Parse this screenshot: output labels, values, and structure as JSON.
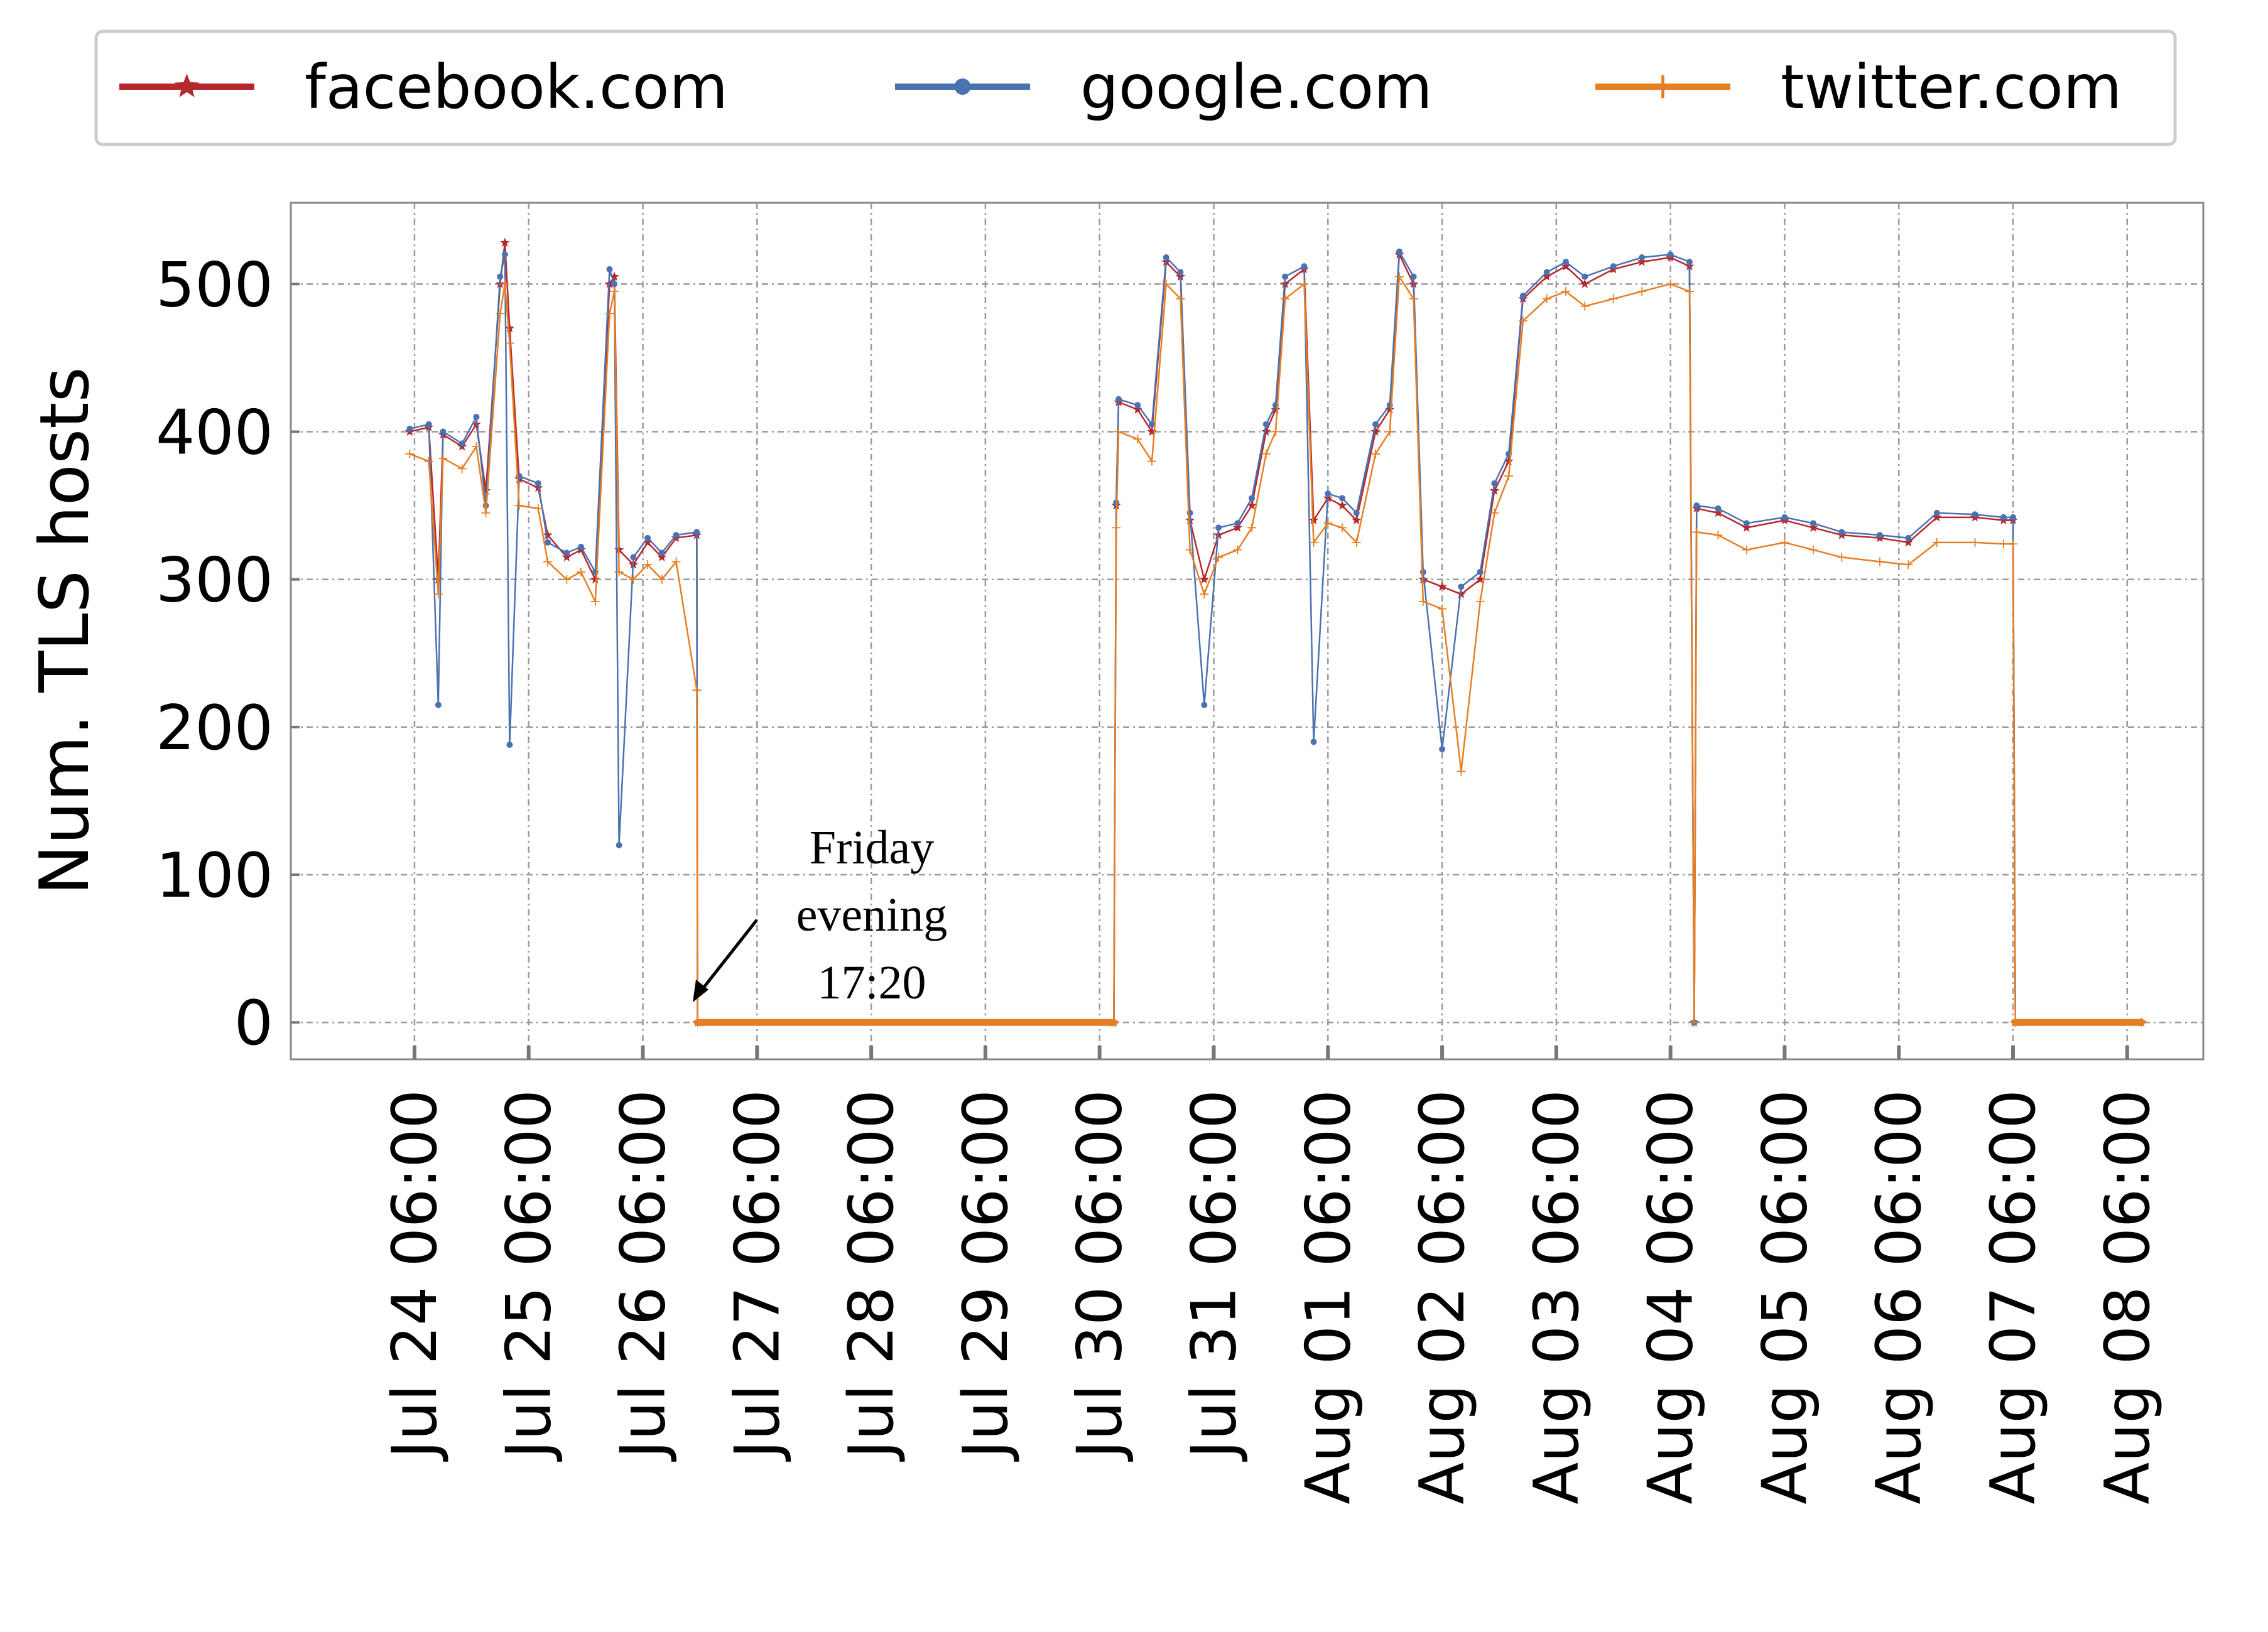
{
  "chart_data": {
    "type": "line",
    "title": "",
    "xlabel": "",
    "ylabel": "Num. TLS hosts",
    "xlim": [
      "2020-07-23T04:00",
      "2020-08-08T22:00"
    ],
    "ylim": [
      -25,
      555
    ],
    "yticks": [
      0,
      100,
      200,
      300,
      400,
      500
    ],
    "xtick_labels": [
      "Jul 24 06:00",
      "Jul 25 06:00",
      "Jul 26 06:00",
      "Jul 27 06:00",
      "Jul 28 06:00",
      "Jul 29 06:00",
      "Jul 30 06:00",
      "Jul 31 06:00",
      "Aug 01 06:00",
      "Aug 02 06:00",
      "Aug 03 06:00",
      "Aug 04 06:00",
      "Aug 05 06:00",
      "Aug 06 06:00",
      "Aug 07 06:00",
      "Aug 08 06:00"
    ],
    "grid": true,
    "legend_position": "top",
    "annotation": {
      "lines": [
        "Friday",
        "evening",
        "17:20"
      ],
      "x": "2020-07-26T17:20",
      "y": 0
    },
    "series": [
      {
        "name": "facebook.com",
        "color": "#b5282d",
        "marker": "star",
        "points": [
          [
            "2020-07-24T05:00",
            400
          ],
          [
            "2020-07-24T09:00",
            403
          ],
          [
            "2020-07-24T11:00",
            300
          ],
          [
            "2020-07-24T12:00",
            398
          ],
          [
            "2020-07-24T16:00",
            390
          ],
          [
            "2020-07-24T19:00",
            405
          ],
          [
            "2020-07-24T21:00",
            360
          ],
          [
            "2020-07-25T00:00",
            500
          ],
          [
            "2020-07-25T01:00",
            528
          ],
          [
            "2020-07-25T02:00",
            470
          ],
          [
            "2020-07-25T04:00",
            368
          ],
          [
            "2020-07-25T08:00",
            362
          ],
          [
            "2020-07-25T10:00",
            330
          ],
          [
            "2020-07-25T14:00",
            315
          ],
          [
            "2020-07-25T17:00",
            320
          ],
          [
            "2020-07-25T20:00",
            300
          ],
          [
            "2020-07-25T23:00",
            500
          ],
          [
            "2020-07-26T00:00",
            505
          ],
          [
            "2020-07-26T01:00",
            320
          ],
          [
            "2020-07-26T04:00",
            310
          ],
          [
            "2020-07-26T07:00",
            325
          ],
          [
            "2020-07-26T10:00",
            315
          ],
          [
            "2020-07-26T13:00",
            328
          ],
          [
            "2020-07-26T17:20",
            330
          ],
          [
            "2020-07-26T17:30",
            0
          ],
          [
            "2020-07-30T09:00",
            0
          ],
          [
            "2020-07-30T09:30",
            350
          ],
          [
            "2020-07-30T10:00",
            420
          ],
          [
            "2020-07-30T14:00",
            415
          ],
          [
            "2020-07-30T17:00",
            400
          ],
          [
            "2020-07-30T20:00",
            515
          ],
          [
            "2020-07-30T23:00",
            505
          ],
          [
            "2020-07-31T01:00",
            340
          ],
          [
            "2020-07-31T04:00",
            300
          ],
          [
            "2020-07-31T07:00",
            330
          ],
          [
            "2020-07-31T11:00",
            335
          ],
          [
            "2020-07-31T14:00",
            350
          ],
          [
            "2020-07-31T17:00",
            400
          ],
          [
            "2020-07-31T19:00",
            415
          ],
          [
            "2020-07-31T21:00",
            500
          ],
          [
            "2020-08-01T01:00",
            510
          ],
          [
            "2020-08-01T03:00",
            340
          ],
          [
            "2020-08-01T06:00",
            355
          ],
          [
            "2020-08-01T09:00",
            350
          ],
          [
            "2020-08-01T12:00",
            340
          ],
          [
            "2020-08-01T16:00",
            400
          ],
          [
            "2020-08-01T19:00",
            415
          ],
          [
            "2020-08-01T21:00",
            520
          ],
          [
            "2020-08-02T00:00",
            500
          ],
          [
            "2020-08-02T02:00",
            300
          ],
          [
            "2020-08-02T06:00",
            295
          ],
          [
            "2020-08-02T10:00",
            290
          ],
          [
            "2020-08-02T14:00",
            300
          ],
          [
            "2020-08-02T17:00",
            360
          ],
          [
            "2020-08-02T20:00",
            380
          ],
          [
            "2020-08-02T23:00",
            490
          ],
          [
            "2020-08-03T04:00",
            505
          ],
          [
            "2020-08-03T08:00",
            512
          ],
          [
            "2020-08-03T12:00",
            500
          ],
          [
            "2020-08-03T18:00",
            510
          ],
          [
            "2020-08-04T00:00",
            515
          ],
          [
            "2020-08-04T06:00",
            518
          ],
          [
            "2020-08-04T10:00",
            512
          ],
          [
            "2020-08-04T11:00",
            0
          ],
          [
            "2020-08-04T11:30",
            348
          ],
          [
            "2020-08-04T16:00",
            345
          ],
          [
            "2020-08-04T22:00",
            335
          ],
          [
            "2020-08-05T06:00",
            340
          ],
          [
            "2020-08-05T12:00",
            335
          ],
          [
            "2020-08-05T18:00",
            330
          ],
          [
            "2020-08-06T02:00",
            328
          ],
          [
            "2020-08-06T08:00",
            325
          ],
          [
            "2020-08-06T14:00",
            342
          ],
          [
            "2020-08-06T22:00",
            342
          ],
          [
            "2020-08-07T04:00",
            340
          ],
          [
            "2020-08-07T06:00",
            340
          ],
          [
            "2020-08-07T06:30",
            0
          ],
          [
            "2020-08-08T09:00",
            0
          ]
        ]
      },
      {
        "name": "google.com",
        "color": "#4a72b0",
        "marker": "circle",
        "points": [
          [
            "2020-07-24T05:00",
            402
          ],
          [
            "2020-07-24T09:00",
            405
          ],
          [
            "2020-07-24T11:00",
            215
          ],
          [
            "2020-07-24T12:00",
            400
          ],
          [
            "2020-07-24T16:00",
            392
          ],
          [
            "2020-07-24T19:00",
            410
          ],
          [
            "2020-07-24T21:00",
            350
          ],
          [
            "2020-07-25T00:00",
            505
          ],
          [
            "2020-07-25T01:00",
            520
          ],
          [
            "2020-07-25T02:00",
            188
          ],
          [
            "2020-07-25T04:00",
            370
          ],
          [
            "2020-07-25T08:00",
            365
          ],
          [
            "2020-07-25T10:00",
            325
          ],
          [
            "2020-07-25T14:00",
            318
          ],
          [
            "2020-07-25T17:00",
            322
          ],
          [
            "2020-07-25T20:00",
            305
          ],
          [
            "2020-07-25T23:00",
            510
          ],
          [
            "2020-07-26T00:00",
            500
          ],
          [
            "2020-07-26T01:00",
            120
          ],
          [
            "2020-07-26T04:00",
            315
          ],
          [
            "2020-07-26T07:00",
            328
          ],
          [
            "2020-07-26T10:00",
            318
          ],
          [
            "2020-07-26T13:00",
            330
          ],
          [
            "2020-07-26T17:20",
            332
          ],
          [
            "2020-07-26T17:30",
            0
          ],
          [
            "2020-07-30T09:00",
            0
          ],
          [
            "2020-07-30T09:30",
            352
          ],
          [
            "2020-07-30T10:00",
            422
          ],
          [
            "2020-07-30T14:00",
            418
          ],
          [
            "2020-07-30T17:00",
            405
          ],
          [
            "2020-07-30T20:00",
            518
          ],
          [
            "2020-07-30T23:00",
            508
          ],
          [
            "2020-07-31T01:00",
            345
          ],
          [
            "2020-07-31T04:00",
            215
          ],
          [
            "2020-07-31T07:00",
            335
          ],
          [
            "2020-07-31T11:00",
            338
          ],
          [
            "2020-07-31T14:00",
            355
          ],
          [
            "2020-07-31T17:00",
            405
          ],
          [
            "2020-07-31T19:00",
            418
          ],
          [
            "2020-07-31T21:00",
            505
          ],
          [
            "2020-08-01T01:00",
            512
          ],
          [
            "2020-08-01T03:00",
            190
          ],
          [
            "2020-08-01T06:00",
            358
          ],
          [
            "2020-08-01T09:00",
            355
          ],
          [
            "2020-08-01T12:00",
            345
          ],
          [
            "2020-08-01T16:00",
            405
          ],
          [
            "2020-08-01T19:00",
            418
          ],
          [
            "2020-08-01T21:00",
            522
          ],
          [
            "2020-08-02T00:00",
            505
          ],
          [
            "2020-08-02T02:00",
            305
          ],
          [
            "2020-08-02T06:00",
            185
          ],
          [
            "2020-08-02T10:00",
            295
          ],
          [
            "2020-08-02T14:00",
            305
          ],
          [
            "2020-08-02T17:00",
            365
          ],
          [
            "2020-08-02T20:00",
            385
          ],
          [
            "2020-08-02T23:00",
            492
          ],
          [
            "2020-08-03T04:00",
            508
          ],
          [
            "2020-08-03T08:00",
            515
          ],
          [
            "2020-08-03T12:00",
            505
          ],
          [
            "2020-08-03T18:00",
            512
          ],
          [
            "2020-08-04T00:00",
            518
          ],
          [
            "2020-08-04T06:00",
            520
          ],
          [
            "2020-08-04T10:00",
            515
          ],
          [
            "2020-08-04T11:00",
            0
          ],
          [
            "2020-08-04T11:30",
            350
          ],
          [
            "2020-08-04T16:00",
            348
          ],
          [
            "2020-08-04T22:00",
            338
          ],
          [
            "2020-08-05T06:00",
            342
          ],
          [
            "2020-08-05T12:00",
            338
          ],
          [
            "2020-08-05T18:00",
            332
          ],
          [
            "2020-08-06T02:00",
            330
          ],
          [
            "2020-08-06T08:00",
            328
          ],
          [
            "2020-08-06T14:00",
            345
          ],
          [
            "2020-08-06T22:00",
            344
          ],
          [
            "2020-08-07T04:00",
            342
          ],
          [
            "2020-08-07T06:00",
            342
          ],
          [
            "2020-08-07T06:30",
            0
          ],
          [
            "2020-08-08T09:00",
            0
          ]
        ]
      },
      {
        "name": "twitter.com",
        "color": "#e67e22",
        "marker": "plus",
        "points": [
          [
            "2020-07-24T05:00",
            385
          ],
          [
            "2020-07-24T09:00",
            380
          ],
          [
            "2020-07-24T11:00",
            290
          ],
          [
            "2020-07-24T12:00",
            382
          ],
          [
            "2020-07-24T16:00",
            375
          ],
          [
            "2020-07-24T19:00",
            390
          ],
          [
            "2020-07-24T21:00",
            345
          ],
          [
            "2020-07-25T00:00",
            480
          ],
          [
            "2020-07-25T01:00",
            500
          ],
          [
            "2020-07-25T02:00",
            460
          ],
          [
            "2020-07-25T04:00",
            350
          ],
          [
            "2020-07-25T08:00",
            348
          ],
          [
            "2020-07-25T10:00",
            312
          ],
          [
            "2020-07-25T14:00",
            300
          ],
          [
            "2020-07-25T17:00",
            305
          ],
          [
            "2020-07-25T20:00",
            285
          ],
          [
            "2020-07-25T23:00",
            480
          ],
          [
            "2020-07-26T00:00",
            495
          ],
          [
            "2020-07-26T01:00",
            305
          ],
          [
            "2020-07-26T04:00",
            300
          ],
          [
            "2020-07-26T07:00",
            310
          ],
          [
            "2020-07-26T10:00",
            300
          ],
          [
            "2020-07-26T13:00",
            312
          ],
          [
            "2020-07-26T17:20",
            225
          ],
          [
            "2020-07-26T17:30",
            0
          ],
          [
            "2020-07-30T09:00",
            0
          ],
          [
            "2020-07-30T09:30",
            335
          ],
          [
            "2020-07-30T10:00",
            400
          ],
          [
            "2020-07-30T14:00",
            395
          ],
          [
            "2020-07-30T17:00",
            380
          ],
          [
            "2020-07-30T20:00",
            500
          ],
          [
            "2020-07-30T23:00",
            490
          ],
          [
            "2020-07-31T01:00",
            320
          ],
          [
            "2020-07-31T04:00",
            290
          ],
          [
            "2020-07-31T07:00",
            315
          ],
          [
            "2020-07-31T11:00",
            320
          ],
          [
            "2020-07-31T14:00",
            335
          ],
          [
            "2020-07-31T17:00",
            385
          ],
          [
            "2020-07-31T19:00",
            400
          ],
          [
            "2020-07-31T21:00",
            490
          ],
          [
            "2020-08-01T01:00",
            500
          ],
          [
            "2020-08-01T03:00",
            325
          ],
          [
            "2020-08-01T06:00",
            338
          ],
          [
            "2020-08-01T09:00",
            335
          ],
          [
            "2020-08-01T12:00",
            325
          ],
          [
            "2020-08-01T16:00",
            385
          ],
          [
            "2020-08-01T19:00",
            400
          ],
          [
            "2020-08-01T21:00",
            505
          ],
          [
            "2020-08-02T00:00",
            490
          ],
          [
            "2020-08-02T02:00",
            285
          ],
          [
            "2020-08-02T06:00",
            280
          ],
          [
            "2020-08-02T10:00",
            170
          ],
          [
            "2020-08-02T14:00",
            285
          ],
          [
            "2020-08-02T17:00",
            345
          ],
          [
            "2020-08-02T20:00",
            370
          ],
          [
            "2020-08-02T23:00",
            475
          ],
          [
            "2020-08-03T04:00",
            490
          ],
          [
            "2020-08-03T08:00",
            495
          ],
          [
            "2020-08-03T12:00",
            485
          ],
          [
            "2020-08-03T18:00",
            490
          ],
          [
            "2020-08-04T00:00",
            495
          ],
          [
            "2020-08-04T06:00",
            500
          ],
          [
            "2020-08-04T10:00",
            495
          ],
          [
            "2020-08-04T11:00",
            0
          ],
          [
            "2020-08-04T11:30",
            332
          ],
          [
            "2020-08-04T16:00",
            330
          ],
          [
            "2020-08-04T22:00",
            320
          ],
          [
            "2020-08-05T06:00",
            325
          ],
          [
            "2020-08-05T12:00",
            320
          ],
          [
            "2020-08-05T18:00",
            315
          ],
          [
            "2020-08-06T02:00",
            312
          ],
          [
            "2020-08-06T08:00",
            310
          ],
          [
            "2020-08-06T14:00",
            325
          ],
          [
            "2020-08-06T22:00",
            325
          ],
          [
            "2020-08-07T04:00",
            324
          ],
          [
            "2020-08-07T06:00",
            324
          ],
          [
            "2020-08-07T06:30",
            0
          ],
          [
            "2020-08-08T09:00",
            0
          ]
        ]
      }
    ]
  }
}
